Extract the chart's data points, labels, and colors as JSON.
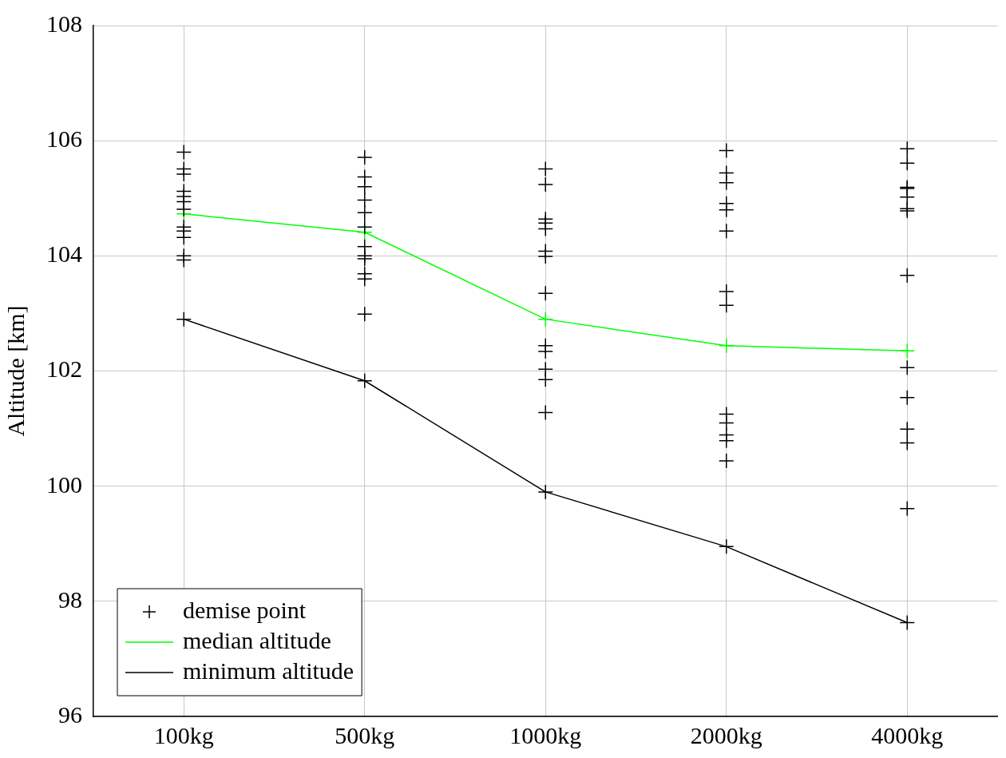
{
  "chart_data": {
    "type": "line",
    "ylabel": "Altitude [km]",
    "categories": [
      "100kg",
      "500kg",
      "1000kg",
      "2000kg",
      "4000kg"
    ],
    "ylim": [
      96,
      108
    ],
    "yticks": [
      96,
      98,
      100,
      102,
      104,
      106,
      108
    ],
    "grid": true,
    "legend": "bottom left",
    "series": [
      {
        "name": "demise point",
        "type": "scatter",
        "color": "#000000",
        "marker": "cross",
        "x": [
          "100kg",
          "100kg",
          "100kg",
          "100kg",
          "100kg",
          "100kg",
          "100kg",
          "100kg",
          "100kg",
          "100kg",
          "100kg",
          "100kg",
          "100kg",
          "500kg",
          "500kg",
          "500kg",
          "500kg",
          "500kg",
          "500kg",
          "500kg",
          "500kg",
          "500kg",
          "500kg",
          "500kg",
          "500kg",
          "500kg",
          "1000kg",
          "1000kg",
          "1000kg",
          "1000kg",
          "1000kg",
          "1000kg",
          "1000kg",
          "1000kg",
          "1000kg",
          "1000kg",
          "1000kg",
          "1000kg",
          "1000kg",
          "1000kg",
          "2000kg",
          "2000kg",
          "2000kg",
          "2000kg",
          "2000kg",
          "2000kg",
          "2000kg",
          "2000kg",
          "2000kg",
          "2000kg",
          "2000kg",
          "2000kg",
          "2000kg",
          "2000kg",
          "4000kg",
          "4000kg",
          "4000kg",
          "4000kg",
          "4000kg",
          "4000kg",
          "4000kg",
          "4000kg",
          "4000kg",
          "4000kg",
          "4000kg",
          "4000kg",
          "4000kg",
          "4000kg"
        ],
        "values": [
          105.8,
          105.51,
          105.42,
          105.12,
          105.03,
          104.94,
          104.81,
          104.5,
          104.43,
          104.32,
          104.0,
          103.93,
          102.9,
          105.71,
          105.37,
          105.2,
          104.97,
          104.75,
          104.5,
          104.16,
          104.0,
          103.95,
          103.69,
          103.6,
          102.99,
          101.83,
          105.51,
          105.24,
          104.64,
          104.57,
          104.47,
          104.08,
          103.99,
          103.35,
          102.44,
          102.34,
          102.03,
          101.85,
          101.28,
          99.9,
          105.83,
          105.44,
          105.27,
          104.91,
          104.8,
          104.43,
          103.38,
          103.14,
          101.25,
          101.1,
          100.89,
          100.79,
          100.44,
          98.95,
          105.86,
          105.61,
          105.19,
          105.17,
          105.02,
          104.82,
          104.78,
          103.66,
          102.06,
          101.54,
          100.99,
          100.75,
          99.61,
          97.63
        ]
      },
      {
        "name": "median altitude",
        "type": "line",
        "color": "#00ff00",
        "marker": "cross",
        "values": [
          104.73,
          104.41,
          102.9,
          102.44,
          102.35
        ]
      },
      {
        "name": "minimum altitude",
        "type": "line",
        "color": "#000000",
        "marker": "none",
        "values": [
          102.9,
          101.83,
          99.9,
          98.95,
          97.63
        ]
      }
    ]
  }
}
